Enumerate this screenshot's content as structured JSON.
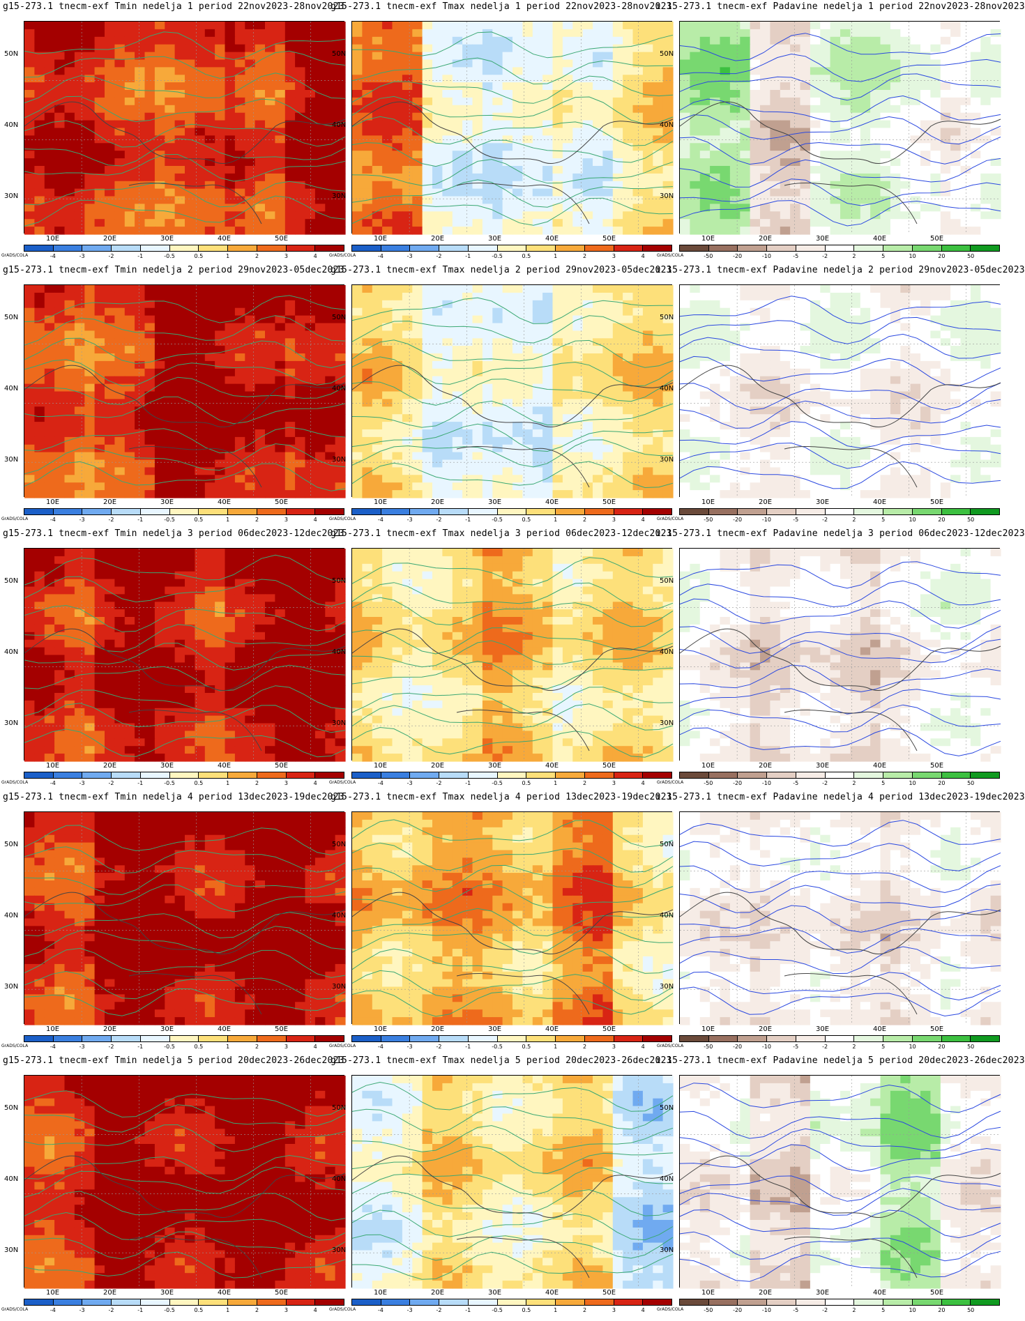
{
  "credit": "GrADS/COLA",
  "lon_labels": [
    "10E",
    "20E",
    "30E",
    "40E",
    "50E"
  ],
  "lat_labels": [
    "50N",
    "40N",
    "30N"
  ],
  "columns": [
    {
      "var": "Tmin",
      "cbar_colors": [
        "#1b5fc8",
        "#3a7fe0",
        "#70aaf0",
        "#b8dcf8",
        "#e8f6ff",
        "#fff6c0",
        "#fde07a",
        "#f7a93a",
        "#ee6a1c",
        "#d82414",
        "#a40000"
      ],
      "cbar_labels": [
        "-4",
        "-3",
        "-2",
        "-1",
        "-0.5",
        "0.5",
        "1",
        "2",
        "3",
        "4"
      ],
      "contour_color": "#3aa873"
    },
    {
      "var": "Tmax",
      "cbar_colors": [
        "#1b5fc8",
        "#3a7fe0",
        "#70aaf0",
        "#b8dcf8",
        "#e8f6ff",
        "#fff6c0",
        "#fde07a",
        "#f7a93a",
        "#ee6a1c",
        "#d82414",
        "#a40000"
      ],
      "cbar_labels": [
        "-4",
        "-3",
        "-2",
        "-1",
        "-0.5",
        "0.5",
        "1",
        "2",
        "3",
        "4"
      ],
      "contour_color": "#3aa873"
    },
    {
      "var": "Padavine",
      "cbar_colors": [
        "#6b4a3a",
        "#987060",
        "#c0a090",
        "#e4cfc4",
        "#f6ece6",
        "#ffffff",
        "#e4f7df",
        "#b8eca8",
        "#78d870",
        "#3cc040",
        "#109a20"
      ],
      "cbar_labels": [
        "-50",
        "-20",
        "-10",
        "-5",
        "-2",
        "2",
        "5",
        "10",
        "20",
        "50"
      ],
      "contour_color": "#2a48e0"
    }
  ],
  "rows": [
    {
      "titles": [
        "g15-273.1  tnecm-exf  Tmin  nedelja  1  period  22nov2023-28nov2023",
        "g15-273.1  tnecm-exf  Tmax  nedelja  1  period  22nov2023-28nov2023",
        "ı 15-273.1  tnecm-exf  Padavine  nedelja  1  period  22nov2023-28nov2023"
      ]
    },
    {
      "titles": [
        "g15-273.1  tnecm-exf  Tmin  nedelja  2  period  29nov2023-05dec2023",
        "g15-273.1  tnecm-exf  Tmax  nedelja  2  period  29nov2023-05dec2023",
        "ı 15-273.1  tnecm-exf  Padavine  nedelja  2  period  29nov2023-05dec2023"
      ]
    },
    {
      "titles": [
        "g15-273.1  tnecm-exf  Tmin  nedelja  3  period  06dec2023-12dec2023",
        "g15-273.1  tnecm-exf  Tmax  nedelja  3  period  06dec2023-12dec2023",
        "ı 15-273.1  tnecm-exf  Padavine  nedelja  3  period  06dec2023-12dec2023"
      ]
    },
    {
      "titles": [
        "g15-273.1  tnecm-exf  Tmin  nedelja  4  period  13dec2023-19dec2023",
        "g15-273.1  tnecm-exf  Tmax  nedelja  4  period  13dec2023-19dec2023",
        "ı 15-273.1  tnecm-exf  Padavine  nedelja  4  period  13dec2023-19dec2023"
      ]
    },
    {
      "titles": [
        "g15-273.1  tnecm-exf  Tmin  nedelja  5  period  20dec2023-26dec2023",
        "g15-273.1  tnecm-exf  Tmax  nedelja  5  period  20dec2023-26dec2023",
        "ı 15-273.1  tnecm-exf  Padavine  nedelja  5  period  20dec2023-26dec2023"
      ]
    }
  ],
  "anomaly_fields": {
    "note_levels": "fill index into cbar_colors",
    "tmin": [
      [
        9,
        9,
        8,
        9,
        10
      ],
      [
        8,
        9,
        10,
        10,
        9
      ],
      [
        9,
        10,
        9,
        10,
        10
      ],
      [
        9,
        10,
        10,
        10,
        10
      ],
      [
        9,
        10,
        10,
        10,
        10
      ]
    ],
    "tmax": [
      [
        8,
        5,
        4,
        5,
        6
      ],
      [
        6,
        5,
        4,
        6,
        6
      ],
      [
        6,
        6,
        7,
        6,
        6
      ],
      [
        7,
        7,
        7,
        8,
        6
      ],
      [
        5,
        6,
        6,
        6,
        4
      ]
    ],
    "padavine": [
      [
        7,
        4,
        6,
        6,
        5
      ],
      [
        5,
        5,
        5,
        5,
        5
      ],
      [
        5,
        4,
        4,
        5,
        5
      ],
      [
        5,
        4,
        5,
        4,
        5
      ],
      [
        5,
        3,
        6,
        7,
        5
      ]
    ]
  }
}
